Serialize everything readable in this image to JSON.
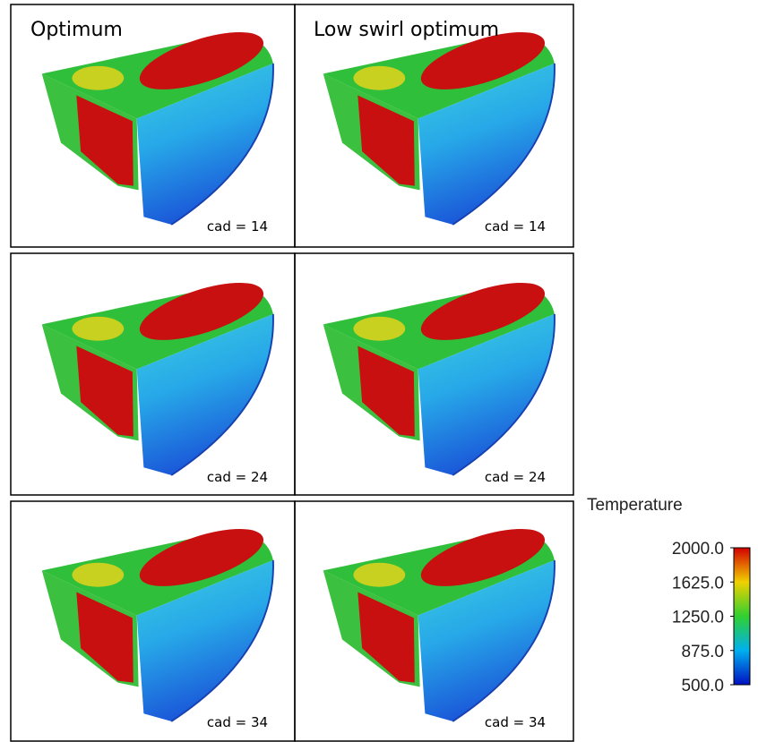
{
  "columns": [
    "Optimum",
    "Low swirl optimum"
  ],
  "panels": [
    [
      "cad = 14",
      "cad = 14"
    ],
    [
      "cad = 24",
      "cad = 24"
    ],
    [
      "cad = 34",
      "cad = 34"
    ]
  ],
  "colorbar": {
    "title": "Temperature",
    "range": [
      500,
      2000
    ],
    "ticks": [
      {
        "value": 2000,
        "label": "2000.0"
      },
      {
        "value": 1625,
        "label": "1625.0"
      },
      {
        "value": 1250,
        "label": "1250.0"
      },
      {
        "value": 875,
        "label": "875.0"
      },
      {
        "value": 500,
        "label": "500.0"
      }
    ]
  }
}
